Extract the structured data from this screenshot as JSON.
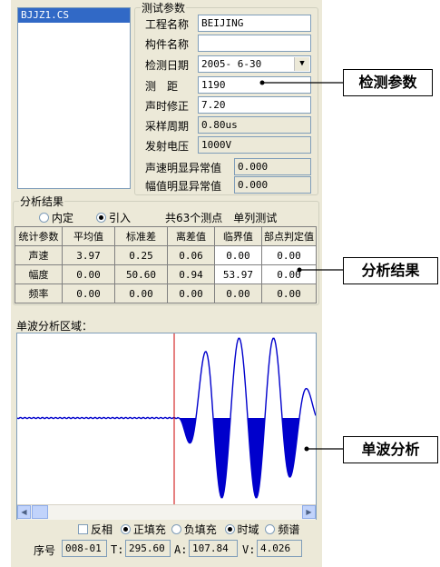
{
  "file_list": {
    "items": [
      "BJJZ1.CS"
    ]
  },
  "test_params": {
    "legend": "测试参数",
    "project_label": "工程名称",
    "project_value": "BEIJING",
    "component_label": "构件名称",
    "component_value": "",
    "date_label": "检测日期",
    "date_value": "2005- 6-30",
    "distance_label": "测　距",
    "distance_value": "1190",
    "sound_time_label": "声时修正",
    "sound_time_value": "7.20",
    "sample_period_label": "采样周期",
    "sample_period_value": "0.80us",
    "voltage_label": "发射电压",
    "voltage_value": "1000V",
    "velocity_anomaly_label": "声速明显异常值",
    "velocity_anomaly_value": "0.000",
    "amplitude_anomaly_label": "幅值明显异常值",
    "amplitude_anomaly_value": "0.000"
  },
  "analysis": {
    "legend": "分析结果",
    "radio_internal": "内定",
    "radio_import": "引入",
    "summary": "共63个测点　单列测试",
    "headers": [
      "统计参数",
      "平均值",
      "标准差",
      "离差值",
      "临界值",
      "部点判定值"
    ],
    "rows": [
      {
        "name": "声速",
        "values": [
          "3.97",
          "0.25",
          "0.06",
          "0.00",
          "0.00"
        ]
      },
      {
        "name": "幅度",
        "values": [
          "0.00",
          "50.60",
          "0.94",
          "53.97",
          "0.00"
        ]
      },
      {
        "name": "频率",
        "values": [
          "0.00",
          "0.00",
          "0.00",
          "0.00",
          "0.00"
        ]
      }
    ]
  },
  "wave": {
    "title": "单波分析区域：",
    "invert_label": "反相",
    "pos_fill_label": "正填充",
    "neg_fill_label": "负填充",
    "time_domain_label": "时域",
    "freq_spectrum_label": "频谱",
    "seq_label": "序号",
    "seq_value": "008-01",
    "t_label": "T:",
    "t_value": "295.60",
    "a_label": "A:",
    "a_value": "107.84",
    "v_label": "V:",
    "v_value": "4.026",
    "colors": {
      "wave": "#0000cc",
      "cursor": "#cc0000",
      "plot_bg": "#ffffff"
    }
  },
  "callouts": {
    "params": "检测参数",
    "analysis": "分析结果",
    "wave": "单波分析"
  }
}
